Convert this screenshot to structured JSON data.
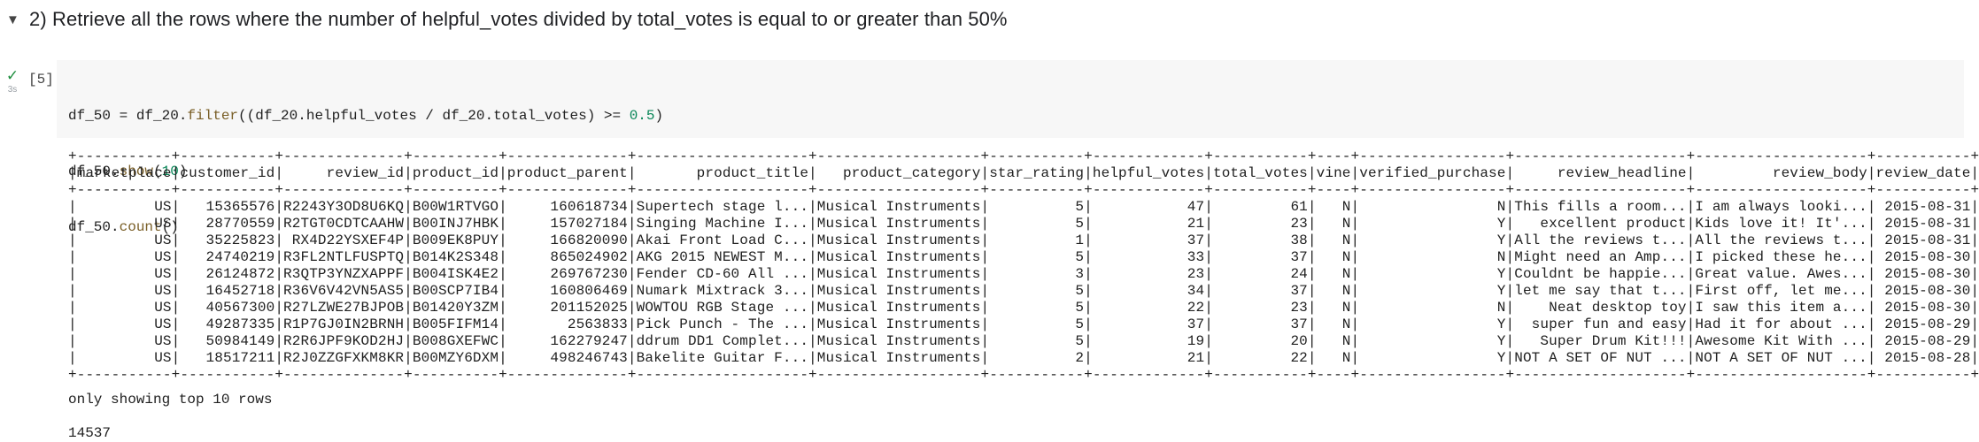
{
  "section": {
    "toggle_icon": "caret-down-icon",
    "title": "2) Retrieve all the rows where the number of helpful_votes divided by total_votes is equal to or greater than 50%"
  },
  "cell": {
    "status_icon": "checkmark-icon",
    "run_time": "3s",
    "exec_count": "[5]",
    "code_lines": [
      "df_50 = df_20.filter((df_20.helpful_votes / df_20.total_votes) >= 0.5)",
      "df_50.show(10)",
      "df_50.count()"
    ]
  },
  "output": {
    "table_header": [
      "marketplace",
      "customer_id",
      "review_id",
      "product_id",
      "product_parent",
      "product_title",
      "product_category",
      "star_rating",
      "helpful_votes",
      "total_votes",
      "vine",
      "verified_purchase",
      "review_headline",
      "review_body",
      "review_date"
    ],
    "table_rows": [
      [
        "US",
        "15365576",
        "R2243Y3OD8U6KQ",
        "B00W1RTVGO",
        "160618734",
        "Supertech stage l...",
        "Musical Instruments",
        "5",
        "47",
        "61",
        "N",
        "N",
        "This fills a room...",
        "I am always looki...",
        "2015-08-31"
      ],
      [
        "US",
        "28770559",
        "R2TGT0CDTCAAHW",
        "B00INJ7HBK",
        "157027184",
        "Singing Machine I...",
        "Musical Instruments",
        "5",
        "21",
        "23",
        "N",
        "Y",
        "excellent product",
        "Kids love it! It'...",
        "2015-08-31"
      ],
      [
        "US",
        "35225823",
        "RX4D22YSXEF4P",
        "B009EK8PUY",
        "166820090",
        "Akai Front Load C...",
        "Musical Instruments",
        "1",
        "37",
        "38",
        "N",
        "Y",
        "All the reviews t...",
        "All the reviews t...",
        "2015-08-31"
      ],
      [
        "US",
        "24740219",
        "R3FL2NTLFUSPTQ",
        "B014K2S348",
        "865024902",
        "AKG 2015 NEWEST M...",
        "Musical Instruments",
        "5",
        "33",
        "37",
        "N",
        "N",
        "Might need an Amp...",
        "I picked these he...",
        "2015-08-30"
      ],
      [
        "US",
        "26124872",
        "R3QTP3YNZXAPPF",
        "B004ISK4E2",
        "269767230",
        "Fender CD-60 All ...",
        "Musical Instruments",
        "3",
        "23",
        "24",
        "N",
        "Y",
        "Couldnt be happie...",
        "Great value. Awes...",
        "2015-08-30"
      ],
      [
        "US",
        "16452718",
        "R36V6V42VN5AS5",
        "B00SCP7IB4",
        "160806469",
        "Numark Mixtrack 3...",
        "Musical Instruments",
        "5",
        "34",
        "37",
        "N",
        "Y",
        "let me say that t...",
        "First off, let me...",
        "2015-08-30"
      ],
      [
        "US",
        "40567300",
        "R27LZWE27BJPOB",
        "B01420Y3ZM",
        "201152025",
        "WOWTOU RGB Stage ...",
        "Musical Instruments",
        "5",
        "22",
        "23",
        "N",
        "N",
        "Neat desktop toy",
        "I saw this item a...",
        "2015-08-30"
      ],
      [
        "US",
        "49287335",
        "R1P7GJ0IN2BRNH",
        "B005FIFM14",
        "2563833",
        "Pick Punch - The ...",
        "Musical Instruments",
        "5",
        "37",
        "37",
        "N",
        "Y",
        "super fun and easy",
        "Had it for about ...",
        "2015-08-29"
      ],
      [
        "US",
        "50984149",
        "R2R6JPF9KOD2HJ",
        "B008GXEFWC",
        "162279247",
        "ddrum DD1 Complet...",
        "Musical Instruments",
        "5",
        "19",
        "20",
        "N",
        "Y",
        "Super Drum Kit!!!",
        "Awesome Kit With ...",
        "2015-08-29"
      ],
      [
        "US",
        "18517211",
        "R2J0ZZGFXKM8KR",
        "B00MZY6DXM",
        "498246743",
        "Bakelite Guitar F...",
        "Musical Instruments",
        "2",
        "21",
        "22",
        "N",
        "Y",
        "NOT A SET OF NUT ...",
        "NOT A SET OF NUT ...",
        "2015-08-28"
      ]
    ],
    "note": "only showing top 10 rows",
    "count": "14537"
  }
}
